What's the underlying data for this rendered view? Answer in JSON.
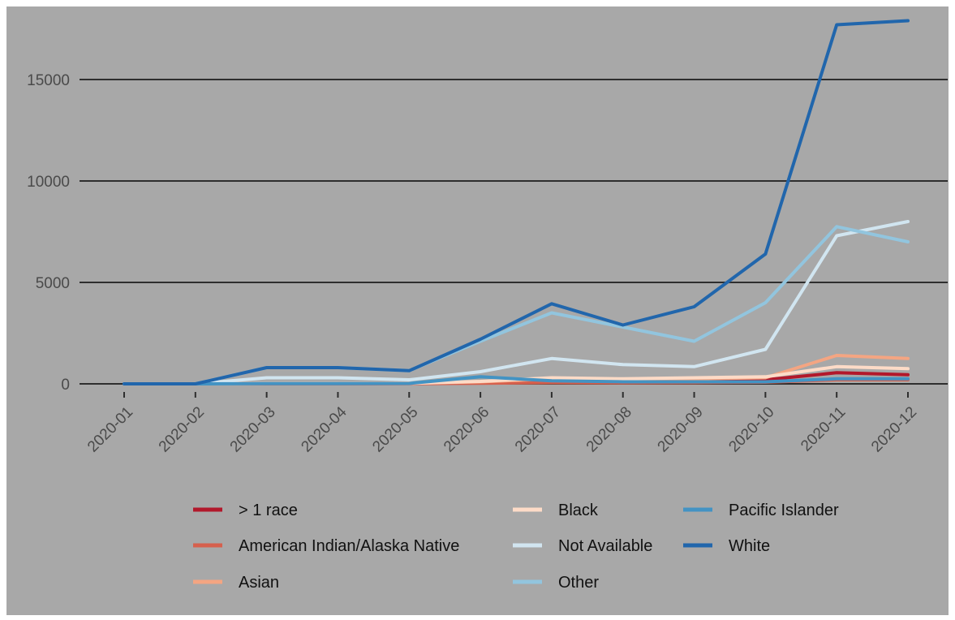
{
  "chart_data": {
    "type": "line",
    "title": "",
    "xlabel": "",
    "ylabel": "",
    "categories": [
      "2020-01",
      "2020-02",
      "2020-03",
      "2020-04",
      "2020-05",
      "2020-06",
      "2020-07",
      "2020-08",
      "2020-09",
      "2020-10",
      "2020-11",
      "2020-12"
    ],
    "y_ticks": [
      0,
      5000,
      10000,
      15000
    ],
    "ylim": [
      -400,
      18600
    ],
    "grid": "horizontal major lines",
    "legend_position": "bottom",
    "series": [
      {
        "name": "> 1 race",
        "color": "#b2182b",
        "values": [
          0,
          0,
          10,
          10,
          20,
          80,
          150,
          120,
          150,
          200,
          550,
          450
        ]
      },
      {
        "name": "American Indian/Alaska Native",
        "color": "#d6604d",
        "values": [
          0,
          0,
          5,
          5,
          10,
          30,
          60,
          50,
          60,
          80,
          200,
          200
        ]
      },
      {
        "name": "Asian",
        "color": "#f4a582",
        "values": [
          0,
          0,
          20,
          20,
          30,
          100,
          250,
          200,
          250,
          300,
          1400,
          1250
        ]
      },
      {
        "name": "Black",
        "color": "#fddbc7",
        "values": [
          0,
          0,
          20,
          20,
          30,
          120,
          300,
          250,
          300,
          350,
          850,
          750
        ]
      },
      {
        "name": "Not Available",
        "color": "#d1e5f0",
        "values": [
          0,
          0,
          300,
          300,
          200,
          600,
          1250,
          950,
          850,
          1700,
          7300,
          8000
        ]
      },
      {
        "name": "Other",
        "color": "#92c5de",
        "values": [
          0,
          0,
          800,
          800,
          650,
          2100,
          3500,
          2800,
          2100,
          4000,
          7750,
          7000
        ]
      },
      {
        "name": "Pacific Islander",
        "color": "#4393c3",
        "values": [
          0,
          0,
          10,
          10,
          20,
          350,
          150,
          100,
          100,
          100,
          250,
          250
        ]
      },
      {
        "name": "White",
        "color": "#2166ac",
        "values": [
          0,
          0,
          800,
          800,
          650,
          2200,
          3950,
          2900,
          3800,
          6400,
          17700,
          17900
        ]
      }
    ]
  }
}
